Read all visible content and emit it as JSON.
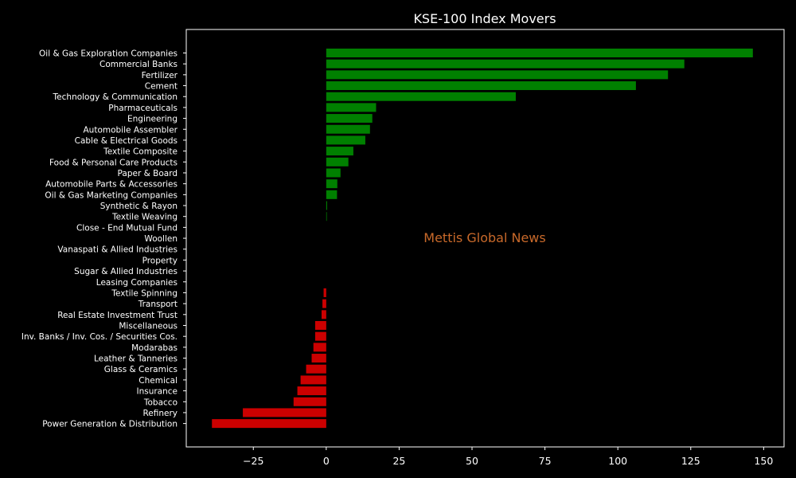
{
  "chart_data": {
    "type": "bar",
    "orientation": "horizontal",
    "title": "KSE-100 Index Movers",
    "xlabel": "",
    "ylabel": "",
    "xlim": [
      -48,
      157
    ],
    "xticks": [
      -25,
      0,
      25,
      50,
      75,
      100,
      125,
      150
    ],
    "xtick_labels": [
      "−25",
      "0",
      "25",
      "50",
      "75",
      "100",
      "125",
      "150"
    ],
    "grid": false,
    "positive_color": "#008000",
    "negative_color": "#cc0000",
    "background_color": "#000000",
    "watermark": "Mettis Global News",
    "watermark_color": "#c8692a",
    "categories": [
      "Oil & Gas Exploration Companies",
      "Commercial Banks",
      "Fertilizer",
      "Cement",
      "Technology & Communication",
      "Pharmaceuticals",
      "Engineering",
      "Automobile Assembler",
      "Cable & Electrical Goods",
      "Textile Composite",
      "Food & Personal Care Products",
      "Paper & Board",
      "Automobile Parts & Accessories",
      "Oil & Gas Marketing Companies",
      "Synthetic & Rayon",
      "Textile Weaving",
      "Close - End Mutual Fund",
      "Woollen",
      "Vanaspati & Allied Industries",
      "Property",
      "Sugar & Allied Industries",
      "Leasing Companies",
      "Textile Spinning",
      "Transport",
      "Real Estate Investment Trust",
      "Miscellaneous",
      "Inv. Banks / Inv. Cos. / Securities Cos.",
      "Modarabas",
      "Leather & Tanneries",
      "Glass & Ceramics",
      "Chemical",
      "Insurance",
      "Tobacco",
      "Refinery",
      "Power Generation & Distribution"
    ],
    "values": [
      146.3,
      122.8,
      117.2,
      106.2,
      65.0,
      17.1,
      15.8,
      15.0,
      13.4,
      9.3,
      7.6,
      4.9,
      3.8,
      3.7,
      0.3,
      0.2,
      0,
      0,
      0,
      0,
      0,
      0,
      -0.9,
      -1.3,
      -1.6,
      -3.8,
      -3.8,
      -4.4,
      -5.0,
      -6.9,
      -8.8,
      -9.9,
      -11.2,
      -28.6,
      -39.2
    ]
  }
}
